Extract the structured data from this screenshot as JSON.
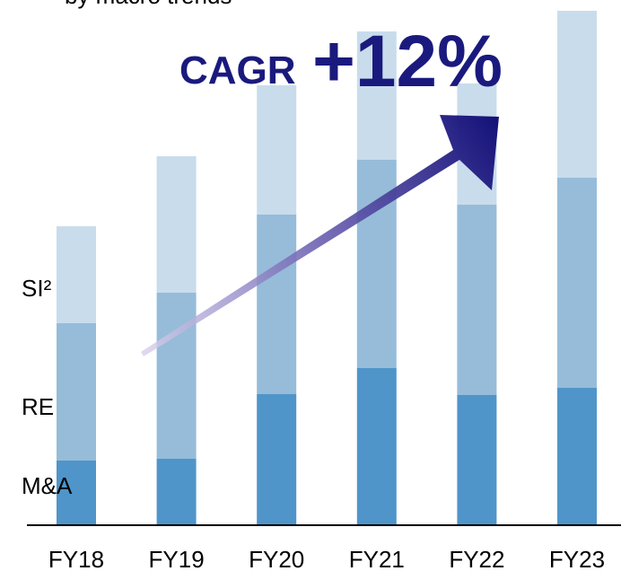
{
  "chart_data": {
    "type": "stacked_bar",
    "subtitle": "by macro trends",
    "annotation": {
      "label": "CAGR",
      "value": "+12%"
    },
    "categories": [
      "FY18",
      "FY19",
      "FY20",
      "FY21",
      "FY22",
      "FY23"
    ],
    "series": [
      {
        "name": "M&A",
        "color": "#4f95c9",
        "values": [
          72,
          74,
          146,
          175,
          145,
          153
        ]
      },
      {
        "name": "RE",
        "color": "#96bcd9",
        "values": [
          153,
          185,
          200,
          232,
          212,
          234
        ]
      },
      {
        "name": "SI²",
        "color": "#c9dcec",
        "values": [
          108,
          152,
          144,
          143,
          135,
          186
        ]
      }
    ]
  }
}
